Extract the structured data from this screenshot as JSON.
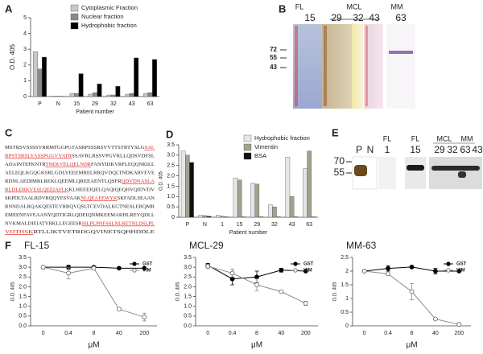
{
  "panel_labels": [
    "A",
    "B",
    "C",
    "D",
    "E",
    "F"
  ],
  "chart_data": [
    {
      "type": "bar",
      "ylabel": "O.D. 405",
      "xlabel": "Patient number",
      "categories": [
        "P",
        "N",
        "15",
        "29",
        "32",
        "43",
        "63"
      ],
      "series": [
        {
          "name": "Cytoplasmic Fraction",
          "color": "#c8c8c8",
          "values": [
            2.85,
            0.02,
            0.2,
            0.15,
            0.1,
            0.15,
            0.2
          ]
        },
        {
          "name": "Nuclear fraction",
          "color": "#8a8a8a",
          "values": [
            1.75,
            0.02,
            0.2,
            0.25,
            0.1,
            0.2,
            0.25
          ]
        },
        {
          "name": "Hydrophobic fraction",
          "color": "#000000",
          "values": [
            2.5,
            0.02,
            1.45,
            0.8,
            0.65,
            2.45,
            2.35
          ]
        }
      ],
      "ylim": [
        0,
        5
      ],
      "yticks": [
        0,
        1,
        2,
        3,
        4,
        5
      ],
      "legend": "top-right"
    },
    {
      "type": "bar",
      "ylabel": "O.D. 405",
      "xlabel": "Patient number",
      "categories": [
        "P",
        "N",
        "1",
        "15",
        "29",
        "32",
        "43",
        "63"
      ],
      "series": [
        {
          "name": "Hydrophobic  fraction",
          "color": "#e6e6e6",
          "values": [
            3.2,
            0.1,
            0.1,
            1.9,
            1.65,
            0.6,
            2.9,
            2.35
          ]
        },
        {
          "name": "Vimentin",
          "color": "#a3a08e",
          "values": [
            3.0,
            0.08,
            0.05,
            1.8,
            1.6,
            0.5,
            1.0,
            3.2
          ]
        },
        {
          "name": "BSA",
          "color": "#111111",
          "values": [
            2.65,
            0.05,
            0.02,
            0.02,
            0.02,
            0.02,
            0.02,
            0.02
          ]
        }
      ],
      "ylim": [
        0,
        3.5
      ],
      "yticks": [
        0,
        0.5,
        {
          "value": 1,
          "label": "1.0"
        },
        1.5,
        {
          "value": 2,
          "label": "2.0"
        },
        2.5,
        {
          "value": 3,
          "label": "3.0"
        },
        3.5
      ],
      "legend": "top-right"
    },
    {
      "type": "line",
      "title": "FL-15",
      "ylabel": "O.D. 405",
      "xlabel": "μM",
      "categories": [
        0,
        0.4,
        8,
        40,
        200
      ],
      "series": [
        {
          "name": "GST",
          "color": "#000000",
          "marker": "filled",
          "values": [
            3.0,
            3.0,
            3.0,
            2.95,
            2.95
          ],
          "errors": [
            0,
            0.1,
            0,
            0,
            0
          ]
        },
        {
          "name": "VIM",
          "color": "#8c8c8c",
          "marker": "open",
          "values": [
            3.0,
            2.7,
            2.95,
            0.85,
            0.45
          ],
          "errors": [
            0,
            0.3,
            0,
            0.05,
            0.2
          ]
        }
      ],
      "ylim": [
        0,
        3.5
      ],
      "yticks": [
        {
          "value": 0,
          "label": "0.0"
        },
        0.5,
        {
          "value": 1,
          "label": "1.0"
        },
        1.5,
        {
          "value": 2,
          "label": "2.0"
        },
        2.5,
        {
          "value": 3,
          "label": "3.0"
        },
        3.5
      ],
      "legend": "top-right"
    },
    {
      "type": "line",
      "title": "MCL-29",
      "ylabel": "O.D. 405",
      "xlabel": "μM",
      "categories": [
        0,
        0.4,
        8,
        40,
        200
      ],
      "series": [
        {
          "name": "GST",
          "color": "#000000",
          "marker": "filled",
          "values": [
            3.1,
            2.4,
            2.5,
            2.85,
            2.8
          ],
          "errors": [
            0.1,
            0.3,
            0.3,
            0.1,
            0
          ]
        },
        {
          "name": "VIM",
          "color": "#8c8c8c",
          "marker": "open",
          "values": [
            3.05,
            2.7,
            2.1,
            1.75,
            1.15
          ],
          "errors": [
            0.1,
            0.2,
            0.3,
            0,
            0.1
          ]
        }
      ],
      "ylim": [
        0,
        3.5
      ],
      "yticks": [
        {
          "value": 0,
          "label": "0.0"
        },
        0.5,
        {
          "value": 1,
          "label": "1.0"
        },
        1.5,
        {
          "value": 2,
          "label": "2.0"
        },
        2.5,
        {
          "value": 3,
          "label": "3.0"
        },
        3.5
      ],
      "legend": "top-right"
    },
    {
      "type": "line",
      "title": "MM-63",
      "ylabel": "O.D. 405",
      "xlabel": "μM",
      "categories": [
        0,
        0.4,
        8,
        40,
        200
      ],
      "series": [
        {
          "name": "GST",
          "color": "#000000",
          "marker": "filled",
          "values": [
            2.0,
            2.1,
            2.15,
            2.0,
            2.0
          ],
          "errors": [
            0,
            0.1,
            0,
            0.1,
            0
          ]
        },
        {
          "name": "VIM",
          "color": "#8c8c8c",
          "marker": "open",
          "values": [
            2.0,
            1.9,
            1.25,
            0.25,
            0.05
          ],
          "errors": [
            0,
            0,
            0.3,
            0,
            0
          ]
        }
      ],
      "ylim": [
        0,
        2.5
      ],
      "yticks": [
        0,
        0.5,
        1,
        1.5,
        2,
        2.5
      ],
      "legend": "top-right"
    }
  ],
  "blot_b": {
    "groups": [
      {
        "label": "FL",
        "lanes": [
          "15"
        ]
      },
      {
        "label": "MCL",
        "lanes": [
          "29",
          "32",
          "43"
        ]
      },
      {
        "label": "MM",
        "lanes": [
          "63"
        ]
      }
    ],
    "markers": [
      72,
      55,
      43
    ]
  },
  "sequence_c": {
    "lines": [
      [
        {
          "text": "MSTRSVSSSSYRRMFGGPGTASRPSSSRSYVTTSTRTYSLG"
        },
        {
          "text": "SAL",
          "peptide": true
        }
      ],
      [
        {
          "text": "RPSTSRSLYASSPGGVYATR",
          "peptide": true
        },
        {
          "text": "SSAVRLRSSVPGVRLLQDSVDFSL"
        }
      ],
      [
        {
          "text": "ADAINTEFKNTR"
        },
        {
          "text": "TNEKVELQELNDR",
          "peptide": true
        },
        {
          "text": "FANYIDKVRFLEQQNKILL"
        }
      ],
      [
        {
          "text": "AELEQLKGQGKSRLGDLYEEEMRELRRQVDQLTNDKARVEVE"
        }
      ],
      [
        {
          "text": "RDNLAEDIMRLREKLQEEMLQREEAENTLQSFR"
        },
        {
          "text": "QDVDNASLA",
          "peptide": true
        }
      ],
      [
        {
          "text": "RLDLERKVESLQEEIAFLK",
          "peptide": true
        },
        {
          "text": "KLHEEEIQELQAQIQEQHVQIDVDV"
        }
      ],
      [
        {
          "text": "SKPDLTAALRDVRQQYESVAAK"
        },
        {
          "text": "NLQEAEEWYK",
          "peptide": true
        },
        {
          "text": "SKFADLSEAAN"
        }
      ],
      [
        {
          "text": "RNNDALRQAKQESTEYRRQVQSLTCEVDALKGTNESLERQMR"
        }
      ],
      [
        {
          "text": "EMEENFAVEAANYQDTIGRLQDEIQNMKEEMARHLREYQDLL"
        }
      ],
      [
        {
          "text": "NVKMALDIEIATYRKLLEGEESR"
        },
        {
          "text": "ISLPLPNFSSLNLRETNLDSLPL",
          "peptide": true
        }
      ],
      [
        {
          "text": "VDTHSK",
          "peptide": true
        },
        {
          "text": "RTLLIKTVETRDGQVINETSQHHDDLE"
        }
      ]
    ]
  },
  "blot_e": {
    "groups": [
      {
        "lanes": [
          "P",
          "N"
        ]
      },
      {
        "label": "FL",
        "lanes": [
          "1"
        ]
      },
      {
        "label": "FL",
        "lanes": [
          "15"
        ]
      },
      {
        "label": "MCL",
        "lanes": [
          "29",
          "32"
        ]
      },
      {
        "label": "MM",
        "lanes": [
          "63"
        ]
      },
      {
        "lanes": [
          "43"
        ]
      }
    ],
    "markers": [
      70,
      55
    ]
  }
}
